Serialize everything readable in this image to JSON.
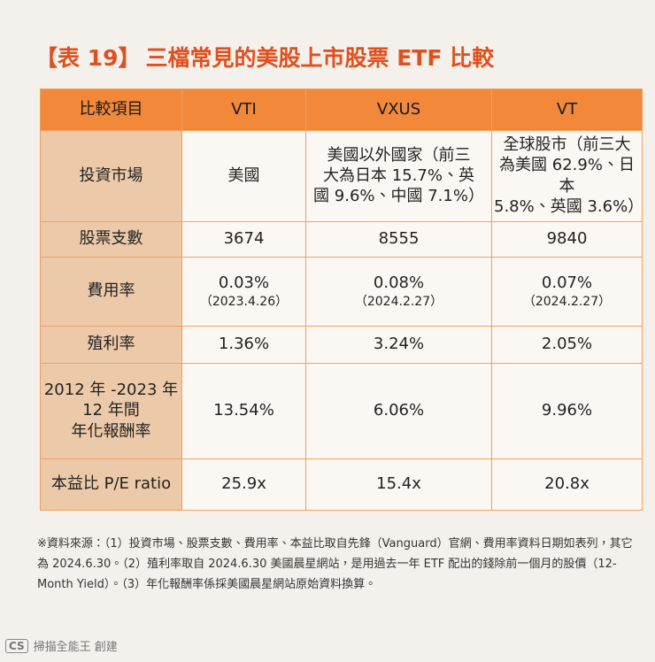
{
  "title": {
    "label": "【表 19】",
    "text": "三檔常見的美股上市股票 ETF 比較"
  },
  "table": {
    "header": [
      "比較項目",
      "VTI",
      "VXUS",
      "VT"
    ],
    "rows": [
      [
        [
          "投資市場"
        ],
        [
          "美國"
        ],
        [
          "美國以外國家（前三",
          "大為日本 15.7%、英",
          "國 9.6%、中國 7.1%）"
        ],
        [
          "全球股市（前三大",
          "為美國 62.9%、日本",
          "5.8%、英國 3.6%）"
        ]
      ],
      [
        [
          "股票支數"
        ],
        [
          "3674"
        ],
        [
          "8555"
        ],
        [
          "9840"
        ]
      ],
      [
        [
          "費用率"
        ],
        [
          "0.03%",
          "（2023.4.26）"
        ],
        [
          "0.08%",
          "（2024.2.27）"
        ],
        [
          "0.07%",
          "（2024.2.27）"
        ]
      ],
      [
        [
          "殖利率"
        ],
        [
          "1.36%"
        ],
        [
          "3.24%"
        ],
        [
          "2.05%"
        ]
      ],
      [
        [
          "2012 年 -2023 年",
          "12 年間",
          "年化報酬率"
        ],
        [
          "13.54%"
        ],
        [
          "6.06%"
        ],
        [
          "9.96%"
        ]
      ],
      [
        [
          "本益比 P/E ratio"
        ],
        [
          "25.9x"
        ],
        [
          "15.4x"
        ],
        [
          "20.8x"
        ]
      ]
    ]
  },
  "footnote": "※資料來源：（1）投資市場、股票支數、費用率、本益比取自先鋒（Vanguard）官網、費用率資料日期如表列，其它為 2024.6.30。（2）殖利率取自 2024.6.30 美國晨星網站，是用過去一年 ETF 配出的錢除前一個月的股價（12-Month Yield）。（3）年化報酬率係採美國晨星網站原始資料換算。",
  "watermark": {
    "logo": "CS",
    "text": "掃描全能王 創建"
  }
}
